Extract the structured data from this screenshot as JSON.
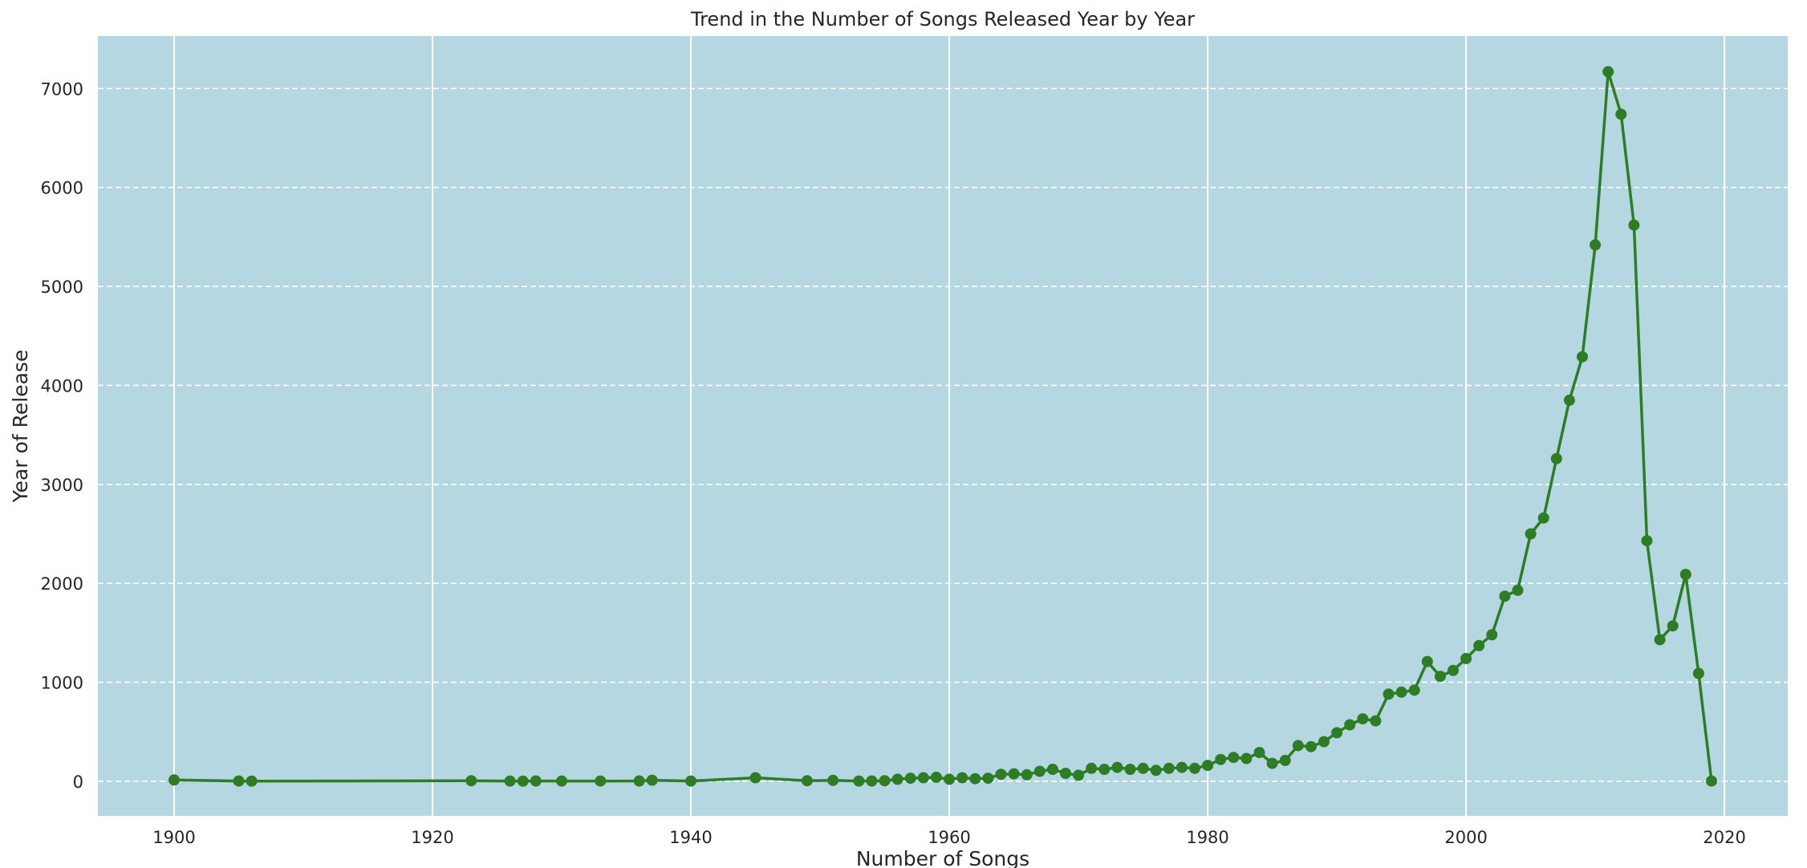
{
  "chart_data": {
    "type": "line",
    "title": "Trend in the Number of Songs Released Year by Year",
    "xlabel": "Number of Songs",
    "ylabel": "Year of Release",
    "xlim": [
      1894.1,
      2024.9
    ],
    "ylim": [
      -350,
      7530
    ],
    "xticks": [
      1900,
      1920,
      1940,
      1960,
      1980,
      2000,
      2020
    ],
    "yticks": [
      0,
      1000,
      2000,
      3000,
      4000,
      5000,
      6000,
      7000
    ],
    "grid": true,
    "legend": "none",
    "colors": {
      "line": "#2e7d24",
      "plot_bg": "#b5d7e2",
      "grid": "#ffffff"
    },
    "series": [
      {
        "x": [
          1900,
          1905,
          1906,
          1923,
          1926,
          1927,
          1928,
          1930,
          1933,
          1936,
          1937,
          1940,
          1945,
          1949,
          1951,
          1953,
          1954,
          1955,
          1956,
          1957,
          1958,
          1959,
          1960,
          1961,
          1962,
          1963,
          1964,
          1965,
          1966,
          1967,
          1968,
          1969,
          1970,
          1971,
          1972,
          1973,
          1974,
          1975,
          1976,
          1977,
          1978,
          1979,
          1980,
          1981,
          1982,
          1983,
          1984,
          1985,
          1986,
          1987,
          1988,
          1989,
          1990,
          1991,
          1992,
          1993,
          1994,
          1995,
          1996,
          1997,
          1998,
          1999,
          2000,
          2001,
          2002,
          2003,
          2004,
          2005,
          2006,
          2007,
          2008,
          2009,
          2010,
          2011,
          2012,
          2013,
          2014,
          2015,
          2016,
          2017,
          2018,
          2019
        ],
        "y": [
          12,
          2,
          1,
          5,
          2,
          1,
          3,
          2,
          2,
          3,
          10,
          2,
          35,
          5,
          8,
          2,
          3,
          5,
          20,
          30,
          35,
          40,
          20,
          35,
          25,
          30,
          70,
          75,
          65,
          100,
          120,
          80,
          60,
          130,
          120,
          140,
          120,
          130,
          110,
          130,
          140,
          130,
          160,
          220,
          240,
          230,
          290,
          180,
          210,
          360,
          350,
          400,
          490,
          570,
          630,
          610,
          880,
          900,
          920,
          1210,
          1060,
          1120,
          1240,
          1370,
          1480,
          1870,
          1930,
          2500,
          2660,
          3260,
          3850,
          4290,
          5420,
          7170,
          6740,
          5620,
          2430,
          1430,
          1570,
          2090,
          1090,
          2
        ]
      }
    ]
  }
}
